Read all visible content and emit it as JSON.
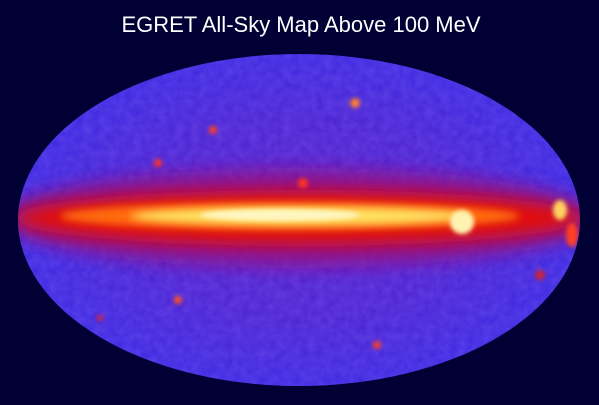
{
  "title": "EGRET All-Sky Map Above 100 MeV"
}
